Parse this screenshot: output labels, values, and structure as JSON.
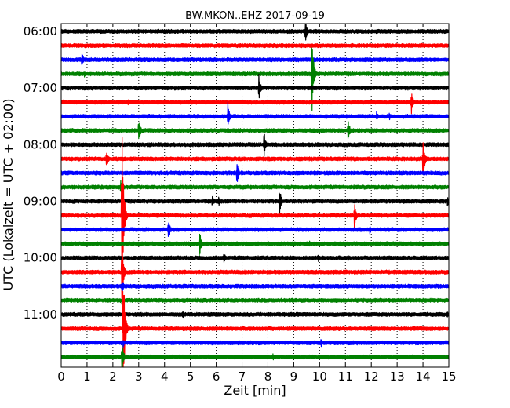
{
  "chart_data": {
    "type": "line",
    "title": "BW.MKON..EHZ 2017-09-19",
    "xlabel": "Zeit  [min]",
    "ylabel": "UTC (Lokalzeit = UTC + 02:00)",
    "xlim": [
      0,
      15
    ],
    "x_ticks": [
      "0",
      "1",
      "2",
      "3",
      "4",
      "5",
      "6",
      "7",
      "8",
      "9",
      "10",
      "11",
      "12",
      "13",
      "14",
      "15"
    ],
    "y_time_range": [
      "05:45",
      "11:45"
    ],
    "y_ticks": [
      {
        "label": "06:00",
        "value": "06:00"
      },
      {
        "label": "07:00",
        "value": "07:00"
      },
      {
        "label": "08:00",
        "value": "08:00"
      },
      {
        "label": "09:00",
        "value": "09:00"
      },
      {
        "label": "10:00",
        "value": "10:00"
      },
      {
        "label": "11:00",
        "value": "11:00"
      }
    ],
    "grid": true,
    "trace_color_cycle": [
      "#000000",
      "#ff0000",
      "#0000ff",
      "#008000"
    ],
    "traces": [
      {
        "start": "06:00",
        "color": "#000000",
        "events": [
          {
            "t": 9.45,
            "a": 16
          }
        ]
      },
      {
        "start": "06:15",
        "color": "#ff0000",
        "events": [
          {
            "t": 14.0,
            "a": 4
          }
        ]
      },
      {
        "start": "06:30",
        "color": "#0000ff",
        "events": [
          {
            "t": 0.8,
            "a": 10
          }
        ]
      },
      {
        "start": "06:45",
        "color": "#008000",
        "events": [
          {
            "t": 0.9,
            "a": 4
          },
          {
            "t": 9.7,
            "a": 55
          }
        ]
      },
      {
        "start": "07:00",
        "color": "#000000",
        "events": [
          {
            "t": 4.0,
            "a": 3
          },
          {
            "t": 7.65,
            "a": 18
          },
          {
            "t": 9.7,
            "a": 5
          }
        ]
      },
      {
        "start": "07:15",
        "color": "#ff0000",
        "events": [
          {
            "t": 0.1,
            "a": 4
          },
          {
            "t": 2.6,
            "a": 5
          },
          {
            "t": 13.55,
            "a": 16
          }
        ]
      },
      {
        "start": "07:30",
        "color": "#0000ff",
        "events": [
          {
            "t": 6.45,
            "a": 18
          },
          {
            "t": 12.2,
            "a": 7
          },
          {
            "t": 12.7,
            "a": 5
          }
        ]
      },
      {
        "start": "07:45",
        "color": "#008000",
        "events": [
          {
            "t": 3.0,
            "a": 17
          },
          {
            "t": 11.1,
            "a": 17
          }
        ]
      },
      {
        "start": "08:00",
        "color": "#000000",
        "events": [
          {
            "t": 7.85,
            "a": 18
          }
        ]
      },
      {
        "start": "08:15",
        "color": "#ff0000",
        "events": [
          {
            "t": 1.75,
            "a": 14
          },
          {
            "t": 14.0,
            "a": 30
          }
        ]
      },
      {
        "start": "08:30",
        "color": "#0000ff",
        "events": [
          {
            "t": 6.8,
            "a": 16
          }
        ]
      },
      {
        "start": "08:45",
        "color": "#008000",
        "events": [
          {
            "t": 2.3,
            "a": 10
          }
        ]
      },
      {
        "start": "09:00",
        "color": "#000000",
        "events": [
          {
            "t": 0.5,
            "a": 4
          },
          {
            "t": 5.85,
            "a": 9
          },
          {
            "t": 6.1,
            "a": 7
          },
          {
            "t": 8.45,
            "a": 19
          },
          {
            "t": 14.95,
            "a": 8
          }
        ]
      },
      {
        "start": "09:15",
        "color": "#ff0000",
        "events": [
          {
            "t": 2.35,
            "a": 120
          },
          {
            "t": 11.35,
            "a": 20
          }
        ]
      },
      {
        "start": "09:30",
        "color": "#0000ff",
        "events": [
          {
            "t": 4.15,
            "a": 16
          },
          {
            "t": 11.95,
            "a": 7
          }
        ]
      },
      {
        "start": "09:45",
        "color": "#008000",
        "events": [
          {
            "t": 5.35,
            "a": 20
          },
          {
            "t": 9.6,
            "a": 5
          }
        ]
      },
      {
        "start": "10:00",
        "color": "#000000",
        "events": [
          {
            "t": 6.3,
            "a": 8
          },
          {
            "t": 9.95,
            "a": 6
          },
          {
            "t": 11.1,
            "a": 4
          }
        ]
      },
      {
        "start": "10:15",
        "color": "#ff0000",
        "events": [
          {
            "t": 2.35,
            "a": 40
          }
        ]
      },
      {
        "start": "10:30",
        "color": "#0000ff",
        "events": [
          {
            "t": 2.35,
            "a": 10
          }
        ]
      },
      {
        "start": "10:45",
        "color": "#008000",
        "events": [
          {
            "t": 2.35,
            "a": 7
          }
        ]
      },
      {
        "start": "11:00",
        "color": "#000000",
        "events": [
          {
            "t": 4.7,
            "a": 6
          },
          {
            "t": 14.95,
            "a": 4
          }
        ]
      },
      {
        "start": "11:15",
        "color": "#ff0000",
        "events": [
          {
            "t": 2.4,
            "a": 90
          }
        ]
      },
      {
        "start": "11:30",
        "color": "#0000ff",
        "events": [
          {
            "t": 2.4,
            "a": 6
          },
          {
            "t": 10.05,
            "a": 6
          }
        ]
      },
      {
        "start": "11:45",
        "color": "#008000",
        "events": [
          {
            "t": 2.35,
            "a": 20
          },
          {
            "t": 8.2,
            "a": 5
          }
        ]
      }
    ]
  }
}
